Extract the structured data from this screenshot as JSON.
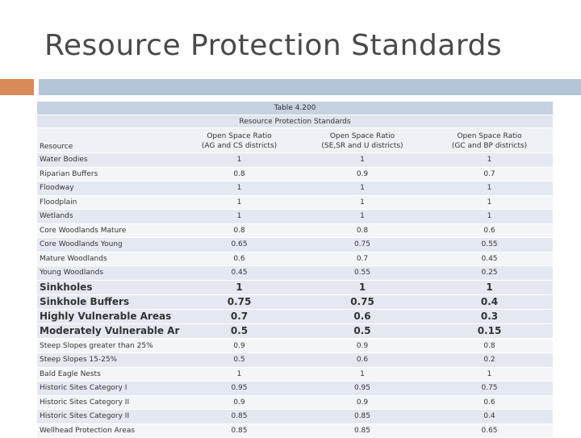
{
  "slide": {
    "title": "Resource Protection Standards"
  },
  "table": {
    "caption_line1": "Table 4.200",
    "caption_line2": "Resource Protection Standards",
    "header": {
      "resource": "Resource",
      "col1_line1": "Open Space Ratio",
      "col1_line2": "(AG and CS districts)",
      "col2_line1": "Open Space Ratio",
      "col2_line2": "(SE,SR and U districts)",
      "col3_line1": "Open Space Ratio",
      "col3_line2": "(GC and BP districts)"
    },
    "rows": [
      {
        "resource": "Water Bodies",
        "c1": "1",
        "c2": "1",
        "c3": "1"
      },
      {
        "resource": "Riparian Buffers",
        "c1": "0.8",
        "c2": "0.9",
        "c3": "0.7"
      },
      {
        "resource": "Floodway",
        "c1": "1",
        "c2": "1",
        "c3": "1"
      },
      {
        "resource": "Floodplain",
        "c1": "1",
        "c2": "1",
        "c3": "1"
      },
      {
        "resource": "Wetlands",
        "c1": "1",
        "c2": "1",
        "c3": "1"
      },
      {
        "resource": "Core Woodlands Mature",
        "c1": "0.8",
        "c2": "0.8",
        "c3": "0.6"
      },
      {
        "resource": "Core Woodlands Young",
        "c1": "0.65",
        "c2": "0.75",
        "c3": "0.55"
      },
      {
        "resource": "Mature Woodlands",
        "c1": "0.6",
        "c2": "0.7",
        "c3": "0.45"
      },
      {
        "resource": "Young Woodlands",
        "c1": "0.45",
        "c2": "0.55",
        "c3": "0.25"
      },
      {
        "resource": "Sinkholes",
        "c1": "1",
        "c2": "1",
        "c3": "1"
      },
      {
        "resource": "Sinkhole Buffers",
        "c1": "0.75",
        "c2": "0.75",
        "c3": "0.4"
      },
      {
        "resource": "Highly Vulnerable Areas",
        "c1": "0.7",
        "c2": "0.6",
        "c3": "0.3"
      },
      {
        "resource": "Moderately Vulnerable Areas",
        "c1": "0.5",
        "c2": "0.5",
        "c3": "0.15"
      },
      {
        "resource": "Steep Slopes greater than 25%",
        "c1": "0.9",
        "c2": "0.9",
        "c3": "0.8"
      },
      {
        "resource": "Steep Slopes 15-25%",
        "c1": "0.5",
        "c2": "0.6",
        "c3": "0.2"
      },
      {
        "resource": "Bald Eagle Nests",
        "c1": "1",
        "c2": "1",
        "c3": "1"
      },
      {
        "resource": "Historic Sites Category I",
        "c1": "0.95",
        "c2": "0.95",
        "c3": "0.75"
      },
      {
        "resource": "Historic Sites Category II",
        "c1": "0.9",
        "c2": "0.9",
        "c3": "0.6"
      },
      {
        "resource": "Historic Sites Category II",
        "c1": "0.85",
        "c2": "0.85",
        "c3": "0.4"
      },
      {
        "resource": "Wellhead Protection Areas",
        "c1": "0.85",
        "c2": "0.85",
        "c3": "0.65"
      }
    ]
  }
}
